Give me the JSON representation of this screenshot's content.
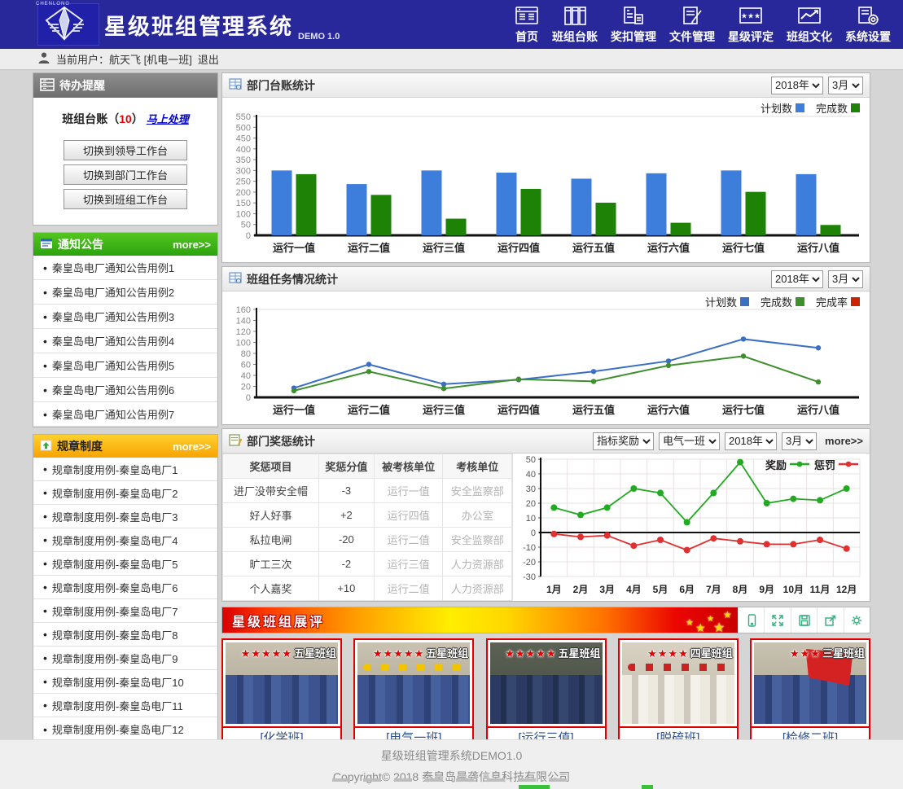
{
  "app": {
    "logo_text": "CHENLONG",
    "title": "星级班组管理系统",
    "version": "DEMO 1.0"
  },
  "nav": {
    "items": [
      {
        "label": "首页",
        "icon": "home-icon"
      },
      {
        "label": "班组台账",
        "icon": "ledger-icon"
      },
      {
        "label": "奖扣管理",
        "icon": "reward-icon"
      },
      {
        "label": "文件管理",
        "icon": "file-icon"
      },
      {
        "label": "星级评定",
        "icon": "star-rating-icon"
      },
      {
        "label": "班组文化",
        "icon": "culture-chart-icon"
      },
      {
        "label": "系统设置",
        "icon": "settings-icon"
      }
    ]
  },
  "userbar": {
    "current_user": "当前用户：航天飞 [机电一班]",
    "logout": "退出"
  },
  "sidebar": {
    "todo": {
      "title": "待办提醒",
      "item_label": "班组台账",
      "paren_open": "（",
      "count": "10",
      "paren_close": "）",
      "link": "马上处理",
      "buttons": [
        "切换到领导工作台",
        "切换到部门工作台",
        "切换到班组工作台"
      ]
    },
    "notices": {
      "title": "通知公告",
      "more": "more>>",
      "items": [
        "秦皇岛电厂通知公告用例1",
        "秦皇岛电厂通知公告用例2",
        "秦皇岛电厂通知公告用例3",
        "秦皇岛电厂通知公告用例4",
        "秦皇岛电厂通知公告用例5",
        "秦皇岛电厂通知公告用例6",
        "秦皇岛电厂通知公告用例7"
      ]
    },
    "rules": {
      "title": "规章制度",
      "more": "more>>",
      "items": [
        "规章制度用例-秦皇岛电厂1",
        "规章制度用例-秦皇岛电厂2",
        "规章制度用例-秦皇岛电厂3",
        "规章制度用例-秦皇岛电厂4",
        "规章制度用例-秦皇岛电厂5",
        "规章制度用例-秦皇岛电厂6",
        "规章制度用例-秦皇岛电厂7",
        "规章制度用例-秦皇岛电厂8",
        "规章制度用例-秦皇岛电厂9",
        "规章制度用例-秦皇岛电厂10",
        "规章制度用例-秦皇岛电厂11",
        "规章制度用例-秦皇岛电厂12"
      ]
    }
  },
  "panels": {
    "ledger": {
      "title": "部门台账统计",
      "selects": [
        "2018年",
        "3月"
      ]
    },
    "task": {
      "title": "班组任务情况统计",
      "selects": [
        "2018年",
        "3月"
      ]
    },
    "reward": {
      "title": "部门奖惩统计",
      "selects": [
        "指标奖励",
        "电气一班",
        "2018年",
        "3月"
      ],
      "more": "more>>",
      "table": {
        "headers": [
          "奖惩项目",
          "奖惩分值",
          "被考核单位",
          "考核单位"
        ],
        "rows": [
          [
            "进厂没带安全帽",
            "-3",
            "运行一值",
            "安全监察部"
          ],
          [
            "好人好事",
            "+2",
            "运行四值",
            "办公室"
          ],
          [
            "私拉电闸",
            "-20",
            "运行二值",
            "安全监察部"
          ],
          [
            "旷工三次",
            "-2",
            "运行三值",
            "人力资源部"
          ],
          [
            "个人嘉奖",
            "+10",
            "运行二值",
            "人力资源部"
          ]
        ]
      }
    },
    "showcase": {
      "title": "星级班组展评",
      "tool_icons": [
        "mobile-icon",
        "fullscreen-icon",
        "save-icon",
        "export-icon",
        "gear-icon"
      ],
      "cards": [
        {
          "caption": "[化学班]",
          "stars": 5,
          "badge": "五星班组"
        },
        {
          "caption": "[电气一班]",
          "stars": 5,
          "badge": "五星班组"
        },
        {
          "caption": "[运行三值]",
          "stars": 5,
          "badge": "五星班组"
        },
        {
          "caption": "[脱硫班]",
          "stars": 4,
          "badge": "四星班组"
        },
        {
          "caption": "[检修二班]",
          "stars": 3,
          "badge": "三星班组"
        }
      ]
    }
  },
  "chart_data": [
    {
      "id": "dept_ledger",
      "type": "bar",
      "title": "部门台账统计",
      "categories": [
        "运行一值",
        "运行二值",
        "运行三值",
        "运行四值",
        "运行五值",
        "运行六值",
        "运行七值",
        "运行八值"
      ],
      "series": [
        {
          "name": "计划数",
          "color": "#3d7edc",
          "values": [
            300,
            237,
            300,
            290,
            262,
            287,
            300,
            283
          ]
        },
        {
          "name": "完成数",
          "color": "#1e8206",
          "values": [
            283,
            187,
            77,
            215,
            151,
            58,
            201,
            48
          ]
        }
      ],
      "ylim": [
        0,
        550
      ],
      "ytick": 50,
      "grid": false,
      "legend_position": "top-right"
    },
    {
      "id": "team_task",
      "type": "line",
      "title": "班组任务情况统计",
      "categories": [
        "运行一值",
        "运行二值",
        "运行三值",
        "运行四值",
        "运行五值",
        "运行六值",
        "运行七值",
        "运行八值"
      ],
      "series": [
        {
          "name": "计划数",
          "color": "#3a6fc4",
          "values": [
            17,
            60,
            24,
            32,
            47,
            66,
            106,
            90
          ]
        },
        {
          "name": "完成数",
          "color": "#3f8f2f",
          "values": [
            12,
            47,
            16,
            33,
            29,
            58,
            75,
            28
          ]
        },
        {
          "name": "完成率",
          "color": "#cc2200",
          "values": []
        }
      ],
      "ylim": [
        0,
        160
      ],
      "ytick": 20,
      "grid": false,
      "legend_position": "top-right",
      "note": "完成率 appears in legend only; no red line plotted"
    },
    {
      "id": "reward_punish",
      "type": "line",
      "title": "部门奖惩统计",
      "categories": [
        "1月",
        "2月",
        "3月",
        "4月",
        "5月",
        "6月",
        "7月",
        "8月",
        "9月",
        "10月",
        "11月",
        "12月"
      ],
      "series": [
        {
          "name": "奖励",
          "color": "#22aa22",
          "values": [
            17,
            12,
            17,
            30,
            27,
            7,
            27,
            48,
            20,
            23,
            22,
            30
          ]
        },
        {
          "name": "惩罚",
          "color": "#e03030",
          "values": [
            -1,
            -3,
            -2,
            -9,
            -5,
            -12,
            -4,
            -6,
            -8,
            -8,
            -5,
            -11
          ]
        }
      ],
      "ylim": [
        -30,
        50
      ],
      "ytick": 10,
      "grid": true,
      "legend_position": "top-right-inside"
    }
  ],
  "colors": {
    "header_blue": "#28289b",
    "notice_green": "#3db31c",
    "rules_orange": "#f9a900",
    "banner_red": "#d80000",
    "card_border_red": "#e00000",
    "tool_teal": "#2fae7c",
    "link_blue": "#0000cc",
    "caption_blue": "#2d4f8e"
  },
  "footer": {
    "line1": "星级班组管理系统DEMO1.0",
    "line2": "Copyright© 2018 秦皇岛晨砻信息科技有限公司"
  }
}
